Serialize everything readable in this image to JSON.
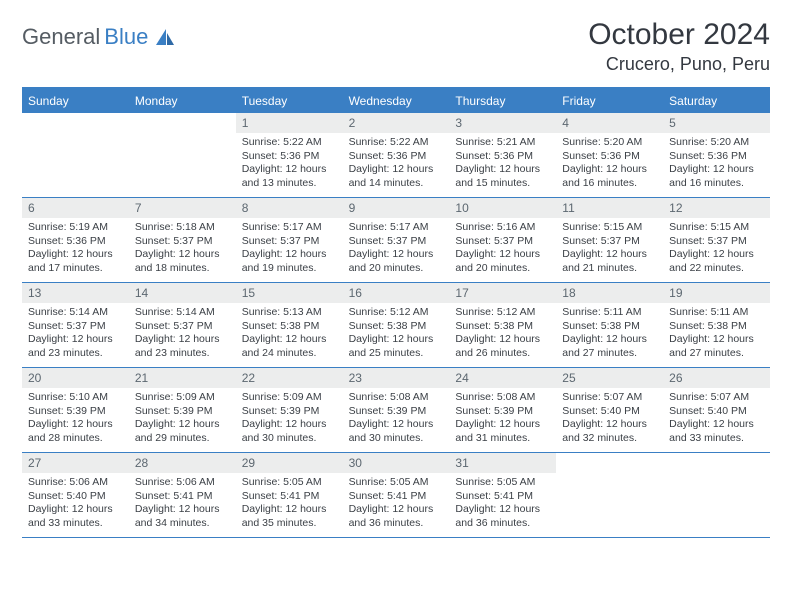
{
  "brand": {
    "part1": "General",
    "part2": "Blue"
  },
  "title": "October 2024",
  "location": "Crucero, Puno, Peru",
  "colors": {
    "accent": "#3a7fc4",
    "daynum_bg": "#eceded",
    "text": "#333840",
    "body_text": "#3a3f45"
  },
  "days_of_week": [
    "Sunday",
    "Monday",
    "Tuesday",
    "Wednesday",
    "Thursday",
    "Friday",
    "Saturday"
  ],
  "weeks": [
    [
      {
        "n": "",
        "sr": "",
        "ss": "",
        "dl": ""
      },
      {
        "n": "",
        "sr": "",
        "ss": "",
        "dl": ""
      },
      {
        "n": "1",
        "sr": "Sunrise: 5:22 AM",
        "ss": "Sunset: 5:36 PM",
        "dl": "Daylight: 12 hours and 13 minutes."
      },
      {
        "n": "2",
        "sr": "Sunrise: 5:22 AM",
        "ss": "Sunset: 5:36 PM",
        "dl": "Daylight: 12 hours and 14 minutes."
      },
      {
        "n": "3",
        "sr": "Sunrise: 5:21 AM",
        "ss": "Sunset: 5:36 PM",
        "dl": "Daylight: 12 hours and 15 minutes."
      },
      {
        "n": "4",
        "sr": "Sunrise: 5:20 AM",
        "ss": "Sunset: 5:36 PM",
        "dl": "Daylight: 12 hours and 16 minutes."
      },
      {
        "n": "5",
        "sr": "Sunrise: 5:20 AM",
        "ss": "Sunset: 5:36 PM",
        "dl": "Daylight: 12 hours and 16 minutes."
      }
    ],
    [
      {
        "n": "6",
        "sr": "Sunrise: 5:19 AM",
        "ss": "Sunset: 5:36 PM",
        "dl": "Daylight: 12 hours and 17 minutes."
      },
      {
        "n": "7",
        "sr": "Sunrise: 5:18 AM",
        "ss": "Sunset: 5:37 PM",
        "dl": "Daylight: 12 hours and 18 minutes."
      },
      {
        "n": "8",
        "sr": "Sunrise: 5:17 AM",
        "ss": "Sunset: 5:37 PM",
        "dl": "Daylight: 12 hours and 19 minutes."
      },
      {
        "n": "9",
        "sr": "Sunrise: 5:17 AM",
        "ss": "Sunset: 5:37 PM",
        "dl": "Daylight: 12 hours and 20 minutes."
      },
      {
        "n": "10",
        "sr": "Sunrise: 5:16 AM",
        "ss": "Sunset: 5:37 PM",
        "dl": "Daylight: 12 hours and 20 minutes."
      },
      {
        "n": "11",
        "sr": "Sunrise: 5:15 AM",
        "ss": "Sunset: 5:37 PM",
        "dl": "Daylight: 12 hours and 21 minutes."
      },
      {
        "n": "12",
        "sr": "Sunrise: 5:15 AM",
        "ss": "Sunset: 5:37 PM",
        "dl": "Daylight: 12 hours and 22 minutes."
      }
    ],
    [
      {
        "n": "13",
        "sr": "Sunrise: 5:14 AM",
        "ss": "Sunset: 5:37 PM",
        "dl": "Daylight: 12 hours and 23 minutes."
      },
      {
        "n": "14",
        "sr": "Sunrise: 5:14 AM",
        "ss": "Sunset: 5:37 PM",
        "dl": "Daylight: 12 hours and 23 minutes."
      },
      {
        "n": "15",
        "sr": "Sunrise: 5:13 AM",
        "ss": "Sunset: 5:38 PM",
        "dl": "Daylight: 12 hours and 24 minutes."
      },
      {
        "n": "16",
        "sr": "Sunrise: 5:12 AM",
        "ss": "Sunset: 5:38 PM",
        "dl": "Daylight: 12 hours and 25 minutes."
      },
      {
        "n": "17",
        "sr": "Sunrise: 5:12 AM",
        "ss": "Sunset: 5:38 PM",
        "dl": "Daylight: 12 hours and 26 minutes."
      },
      {
        "n": "18",
        "sr": "Sunrise: 5:11 AM",
        "ss": "Sunset: 5:38 PM",
        "dl": "Daylight: 12 hours and 27 minutes."
      },
      {
        "n": "19",
        "sr": "Sunrise: 5:11 AM",
        "ss": "Sunset: 5:38 PM",
        "dl": "Daylight: 12 hours and 27 minutes."
      }
    ],
    [
      {
        "n": "20",
        "sr": "Sunrise: 5:10 AM",
        "ss": "Sunset: 5:39 PM",
        "dl": "Daylight: 12 hours and 28 minutes."
      },
      {
        "n": "21",
        "sr": "Sunrise: 5:09 AM",
        "ss": "Sunset: 5:39 PM",
        "dl": "Daylight: 12 hours and 29 minutes."
      },
      {
        "n": "22",
        "sr": "Sunrise: 5:09 AM",
        "ss": "Sunset: 5:39 PM",
        "dl": "Daylight: 12 hours and 30 minutes."
      },
      {
        "n": "23",
        "sr": "Sunrise: 5:08 AM",
        "ss": "Sunset: 5:39 PM",
        "dl": "Daylight: 12 hours and 30 minutes."
      },
      {
        "n": "24",
        "sr": "Sunrise: 5:08 AM",
        "ss": "Sunset: 5:39 PM",
        "dl": "Daylight: 12 hours and 31 minutes."
      },
      {
        "n": "25",
        "sr": "Sunrise: 5:07 AM",
        "ss": "Sunset: 5:40 PM",
        "dl": "Daylight: 12 hours and 32 minutes."
      },
      {
        "n": "26",
        "sr": "Sunrise: 5:07 AM",
        "ss": "Sunset: 5:40 PM",
        "dl": "Daylight: 12 hours and 33 minutes."
      }
    ],
    [
      {
        "n": "27",
        "sr": "Sunrise: 5:06 AM",
        "ss": "Sunset: 5:40 PM",
        "dl": "Daylight: 12 hours and 33 minutes."
      },
      {
        "n": "28",
        "sr": "Sunrise: 5:06 AM",
        "ss": "Sunset: 5:41 PM",
        "dl": "Daylight: 12 hours and 34 minutes."
      },
      {
        "n": "29",
        "sr": "Sunrise: 5:05 AM",
        "ss": "Sunset: 5:41 PM",
        "dl": "Daylight: 12 hours and 35 minutes."
      },
      {
        "n": "30",
        "sr": "Sunrise: 5:05 AM",
        "ss": "Sunset: 5:41 PM",
        "dl": "Daylight: 12 hours and 36 minutes."
      },
      {
        "n": "31",
        "sr": "Sunrise: 5:05 AM",
        "ss": "Sunset: 5:41 PM",
        "dl": "Daylight: 12 hours and 36 minutes."
      },
      {
        "n": "",
        "sr": "",
        "ss": "",
        "dl": ""
      },
      {
        "n": "",
        "sr": "",
        "ss": "",
        "dl": ""
      }
    ]
  ]
}
